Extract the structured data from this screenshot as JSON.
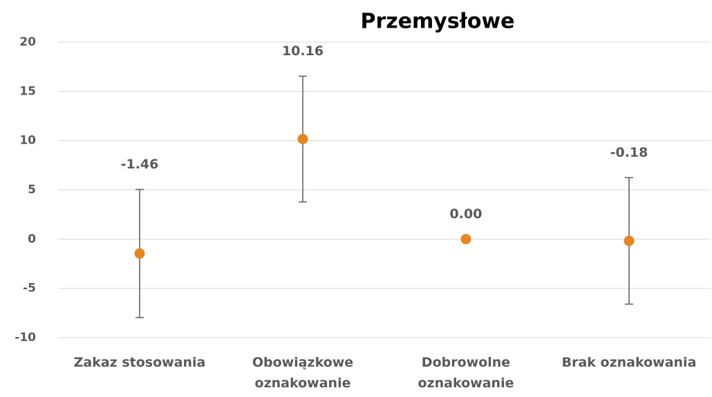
{
  "chart_data": {
    "type": "errorbar",
    "title": "Przemysłowe",
    "categories": [
      "Zakaz stosowania",
      "Obowiązkowe oznakowanie",
      "Dobrowolne oznakowanie",
      "Brak oznakowania"
    ],
    "values": [
      -1.46,
      10.16,
      0,
      -0.18
    ],
    "value_labels": [
      "-1.46",
      "10.16",
      "0.00",
      "-0.18"
    ],
    "errors": [
      6.5,
      6.38,
      0,
      6.42
    ],
    "color": "#e8861e",
    "error_color": "#595959",
    "ylim": [
      -10,
      20
    ],
    "yticks": [
      -10,
      -5,
      0,
      5,
      10,
      15,
      20
    ],
    "grid": true
  }
}
